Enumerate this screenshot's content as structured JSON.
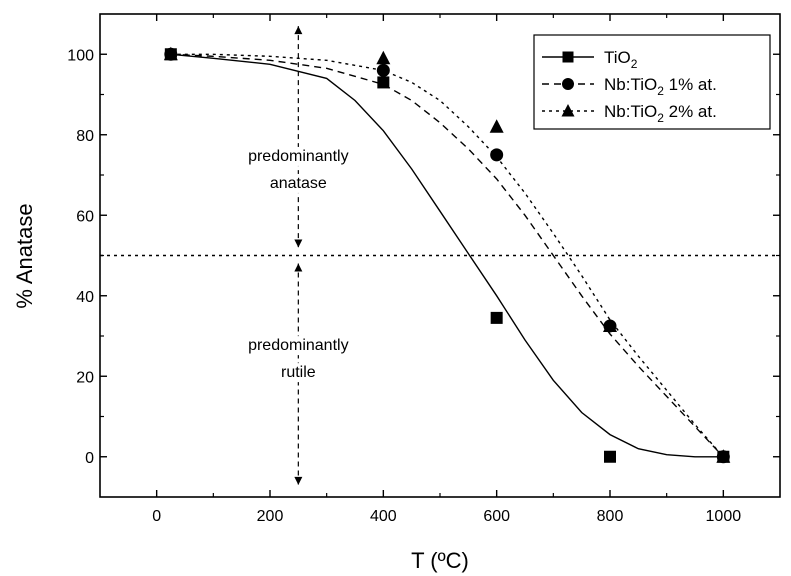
{
  "chart_data": {
    "type": "scatter",
    "xlabel": "T (ºC)",
    "ylabel": "% Anatase",
    "xlim": [
      -100,
      1100
    ],
    "ylim": [
      -10,
      110
    ],
    "xticks": [
      0,
      200,
      400,
      600,
      800,
      1000
    ],
    "xtick_labels": [
      "0",
      "200",
      "400",
      "600",
      "800",
      "1000"
    ],
    "yticks": [
      0,
      20,
      40,
      60,
      80,
      100
    ],
    "ytick_labels": [
      "0",
      "20",
      "40",
      "60",
      "80",
      "100"
    ],
    "grid": false,
    "legend_position": "top-right",
    "series": [
      {
        "name": "TiO2",
        "legend_main": "TiO",
        "legend_sub": "2",
        "legend_tail": "",
        "marker": "square",
        "line_style": "solid",
        "points": [
          [
            25,
            100
          ],
          [
            400,
            93
          ],
          [
            600,
            34.5
          ],
          [
            800,
            0
          ],
          [
            1000,
            0
          ]
        ],
        "fit_curve": [
          [
            25,
            100
          ],
          [
            100,
            99
          ],
          [
            200,
            97.5
          ],
          [
            300,
            94
          ],
          [
            350,
            88.5
          ],
          [
            400,
            81
          ],
          [
            450,
            71.5
          ],
          [
            500,
            61
          ],
          [
            550,
            50.5
          ],
          [
            600,
            40
          ],
          [
            650,
            29
          ],
          [
            700,
            19
          ],
          [
            750,
            11
          ],
          [
            800,
            5.5
          ],
          [
            850,
            2
          ],
          [
            900,
            0.5
          ],
          [
            950,
            0
          ],
          [
            1000,
            0
          ]
        ]
      },
      {
        "name": "Nb:TiO2 1% at.",
        "legend_main": "Nb:TiO",
        "legend_sub": "2",
        "legend_tail": " 1% at.",
        "marker": "circle",
        "line_style": "dashed",
        "points": [
          [
            25,
            100
          ],
          [
            400,
            96
          ],
          [
            600,
            75
          ],
          [
            800,
            32.5
          ],
          [
            1000,
            0
          ]
        ],
        "fit_curve": [
          [
            25,
            100
          ],
          [
            100,
            99.5
          ],
          [
            200,
            98.5
          ],
          [
            300,
            96.5
          ],
          [
            400,
            92.5
          ],
          [
            450,
            88.5
          ],
          [
            500,
            83
          ],
          [
            550,
            76.5
          ],
          [
            600,
            69
          ],
          [
            650,
            60
          ],
          [
            700,
            50
          ],
          [
            750,
            40
          ],
          [
            800,
            30.5
          ],
          [
            850,
            22.5
          ],
          [
            900,
            15
          ],
          [
            950,
            7.5
          ],
          [
            1000,
            0
          ]
        ]
      },
      {
        "name": "Nb:TiO2 2% at.",
        "legend_main": "Nb:TiO",
        "legend_sub": "2",
        "legend_tail": " 2% at.",
        "marker": "triangle",
        "line_style": "dotted",
        "points": [
          [
            25,
            100
          ],
          [
            400,
            99
          ],
          [
            600,
            82
          ],
          [
            800,
            32.5
          ],
          [
            1000,
            0
          ]
        ],
        "fit_curve": [
          [
            25,
            100
          ],
          [
            100,
            100
          ],
          [
            200,
            99.5
          ],
          [
            300,
            98.5
          ],
          [
            400,
            96
          ],
          [
            450,
            93
          ],
          [
            500,
            88.5
          ],
          [
            550,
            82
          ],
          [
            600,
            74.5
          ],
          [
            650,
            65.5
          ],
          [
            700,
            55.5
          ],
          [
            750,
            45
          ],
          [
            800,
            34
          ],
          [
            850,
            25
          ],
          [
            900,
            16.5
          ],
          [
            950,
            8
          ],
          [
            1000,
            0
          ]
        ]
      }
    ],
    "reference_line": {
      "y": 50,
      "line_style": "dotted"
    },
    "divider_arrow": {
      "x": 250,
      "y_top": 107,
      "y_bottom": -7,
      "break_low": 48,
      "break_high": 52
    },
    "annotations": {
      "anatase": {
        "lines": [
          "predominantly",
          "anatase"
        ],
        "anchor": [
          250,
          72
        ]
      },
      "rutile": {
        "lines": [
          "predominantly",
          "rutile"
        ],
        "anchor": [
          250,
          25
        ]
      }
    }
  }
}
